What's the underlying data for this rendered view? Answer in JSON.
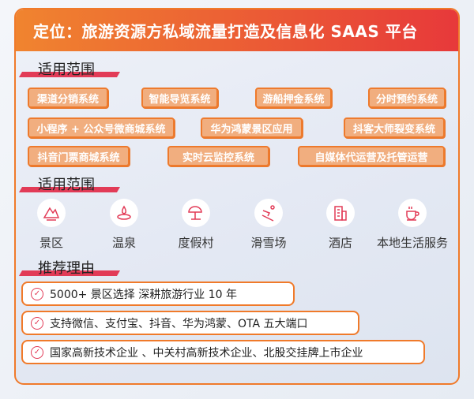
{
  "title": "定位：旅游资源方私域流量打造及信息化 SAAS 平台",
  "section1": "适用范围",
  "systems": [
    "渠道分销系统",
    "智能导览系统",
    "游船押金系统",
    "分时预约系统",
    "小程序 + 公众号微商城系统",
    "华为鸿蒙景区应用",
    "抖客大师裂变系统",
    "抖音门票商城系统",
    "实时云监控系统",
    "自媒体代运营及托管运营"
  ],
  "section2": "适用范围",
  "scenes": [
    {
      "label": "景区",
      "icon": "mountain-icon"
    },
    {
      "label": "温泉",
      "icon": "hot-spring-icon"
    },
    {
      "label": "度假村",
      "icon": "beach-umbrella-icon"
    },
    {
      "label": "滑雪场",
      "icon": "skier-icon"
    },
    {
      "label": "酒店",
      "icon": "building-icon"
    },
    {
      "label": "本地生活服务",
      "icon": "coffee-cup-icon"
    }
  ],
  "section3": "推荐理由",
  "reasons": [
    "5000+ 景区选择  深耕旅游行业 10 年",
    "支持微信、支付宝、抖音、华为鸿蒙、OTA 五大端口",
    "国家高新技术企业 、中关村高新技术企业、北股交挂牌上市企业"
  ],
  "colors": {
    "accent": "#f07a2a",
    "red": "#e23b57",
    "tag": "#f1ae7f"
  }
}
